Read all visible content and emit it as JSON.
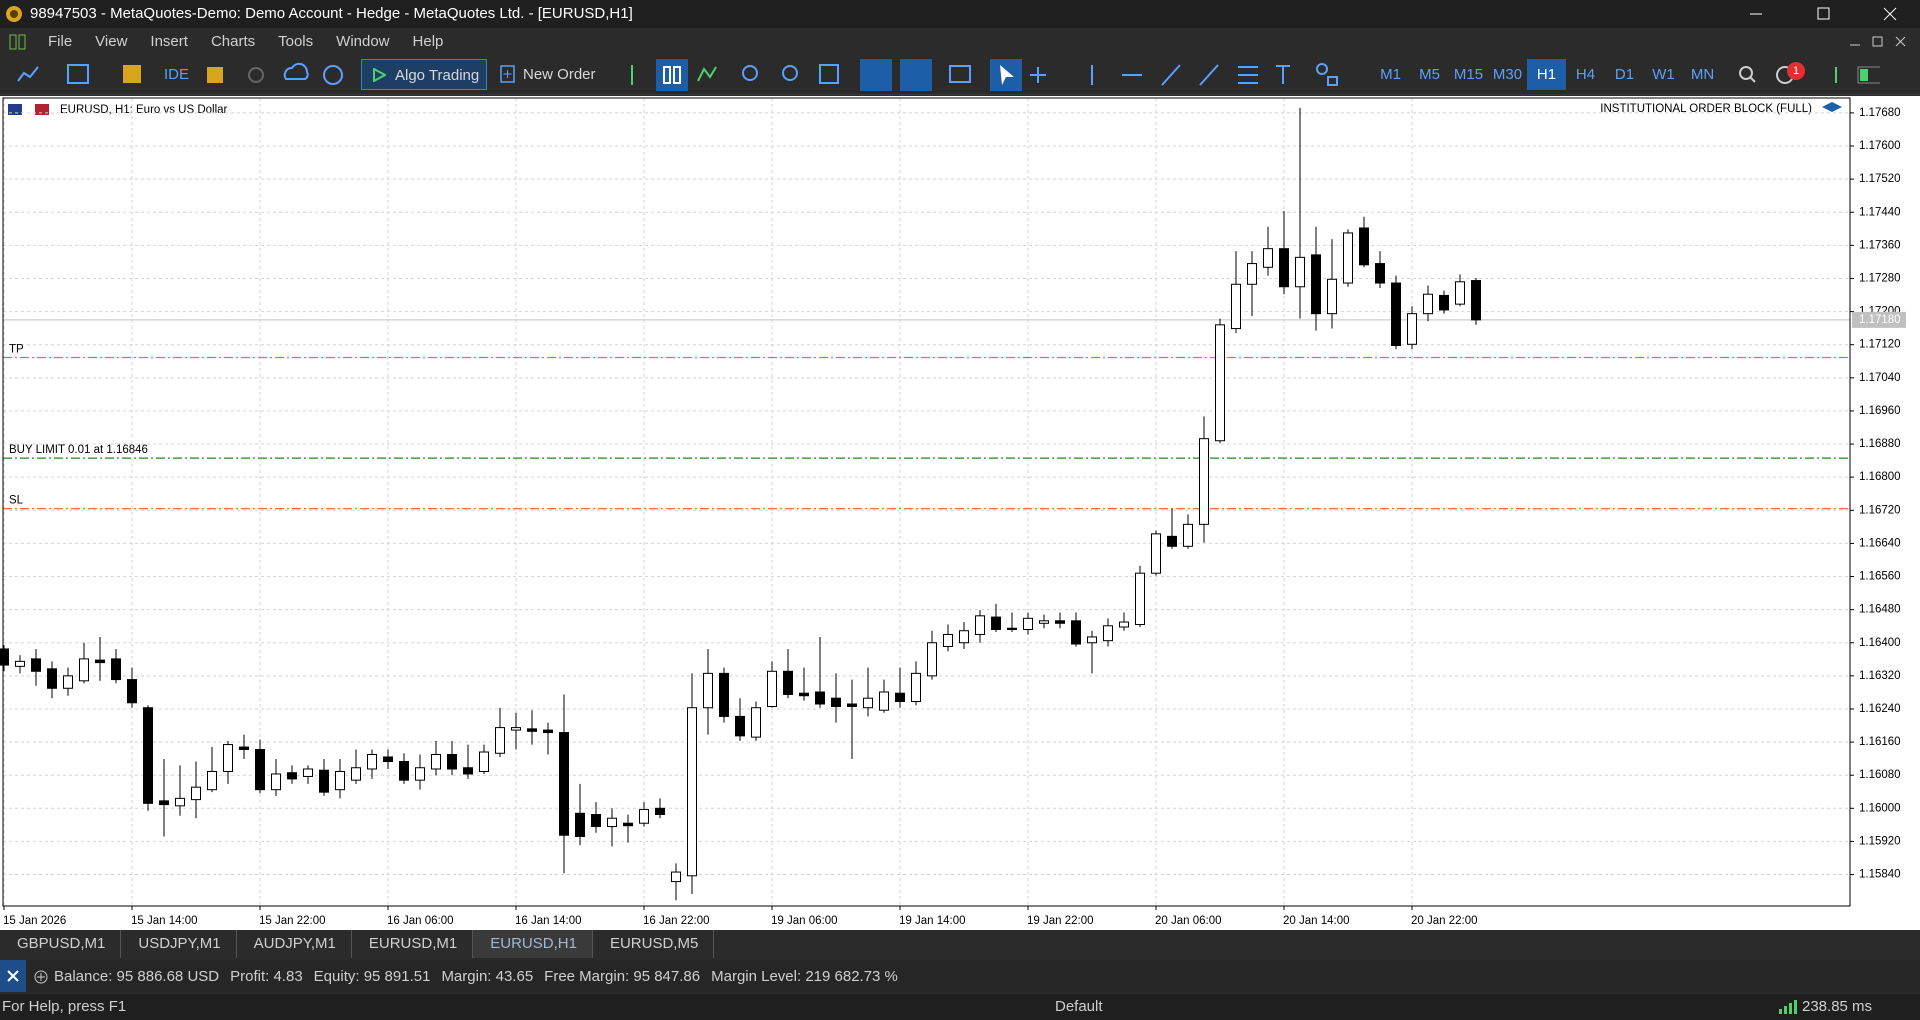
{
  "window": {
    "title": "98947503 - MetaQuotes-Demo: Demo Account - Hedge - MetaQuotes Ltd. - [EURUSD,H1]"
  },
  "menu": [
    "File",
    "View",
    "Insert",
    "Charts",
    "Tools",
    "Window",
    "Help"
  ],
  "toolbar": {
    "ide": "IDE",
    "algo_trading": "Algo Trading",
    "new_order": "New Order",
    "alerts": "1"
  },
  "timeframes": [
    {
      "label": "M1"
    },
    {
      "label": "M5"
    },
    {
      "label": "M15"
    },
    {
      "label": "M30"
    },
    {
      "label": "H1",
      "active": true
    },
    {
      "label": "H4"
    },
    {
      "label": "D1"
    },
    {
      "label": "W1"
    },
    {
      "label": "MN"
    }
  ],
  "chart_data": {
    "type": "candlestick",
    "symbol": "EURUSD, H1:",
    "description": "Euro vs US Dollar",
    "indicator": "INSTITUTIONAL ORDER BLOCK (FULL)",
    "categories": [
      "15 Jan 2026",
      null,
      null,
      null,
      null,
      null,
      null,
      null,
      "15 Jan 14:00",
      null,
      null,
      null,
      null,
      null,
      null,
      null,
      "15 Jan 22:00",
      null,
      null,
      null,
      null,
      null,
      null,
      null,
      "16 Jan 06:00",
      null,
      null,
      null,
      null,
      null,
      null,
      null,
      "16 Jan 14:00",
      null,
      null,
      null,
      null,
      null,
      null,
      null,
      "16 Jan 22:00",
      null,
      null,
      null,
      null,
      null,
      null,
      null,
      "19 Jan 06:00",
      null,
      null,
      null,
      null,
      null,
      null,
      null,
      "19 Jan 14:00",
      null,
      null,
      null,
      null,
      null,
      null,
      null,
      "19 Jan 22:00",
      null,
      null,
      null,
      null,
      null,
      null,
      null,
      "20 Jan 06:00",
      null,
      null,
      null,
      null,
      null,
      null,
      null,
      "20 Jan 14:00",
      null,
      null,
      null,
      null,
      null,
      null,
      null,
      "20 Jan 22:00",
      null,
      null,
      null,
      null
    ],
    "open": [
      1.16385,
      1.16343,
      1.16361,
      1.16337,
      1.1629,
      1.16308,
      1.16358,
      1.16361,
      1.16311,
      1.16243,
      1.16018,
      1.16006,
      1.16021,
      1.16045,
      1.16089,
      1.16148,
      1.16142,
      1.16045,
      1.16086,
      1.16077,
      1.16092,
      1.16045,
      1.16068,
      1.16095,
      1.16124,
      1.16113,
      1.16068,
      1.16095,
      1.1613,
      1.16098,
      1.16089,
      1.16133,
      1.16189,
      1.16192,
      1.16189,
      1.16183,
      1.15988,
      1.15985,
      1.15956,
      1.15964,
      1.15964,
      1.16,
      1.15823,
      1.15837,
      1.16243,
      1.16326,
      1.16222,
      1.16172,
      1.16246,
      1.16331,
      1.16278,
      1.16281,
      1.16266,
      1.16252,
      1.16243,
      1.16237,
      1.16278,
      1.16258,
      1.1632,
      1.16391,
      1.164,
      1.1642,
      1.16462,
      1.16435,
      1.16432,
      1.16447,
      1.16453,
      1.16453,
      1.164,
      1.16405,
      1.16438,
      1.16444,
      1.16568,
      1.16657,
      1.16633,
      1.16686,
      1.16888,
      1.17159,
      1.17266,
      1.17307,
      1.17352,
      1.1726,
      1.17337,
      1.17195,
      1.17269,
      1.17402,
      1.17316,
      1.17269,
      1.17121,
      1.17195,
      1.17239,
      1.17218,
      1.17275
    ],
    "high": [
      1.16394,
      1.1637,
      1.16385,
      1.16355,
      1.1634,
      1.164,
      1.16414,
      1.16385,
      1.1634,
      1.16249,
      1.16119,
      1.16104,
      1.16113,
      1.16148,
      1.16163,
      1.16178,
      1.16166,
      1.16119,
      1.16104,
      1.16104,
      1.16119,
      1.16119,
      1.16142,
      1.16142,
      1.16142,
      1.16133,
      1.1613,
      1.16163,
      1.16163,
      1.16154,
      1.16154,
      1.16243,
      1.16231,
      1.16237,
      1.16207,
      1.16275,
      1.16059,
      1.16015,
      1.16,
      1.15985,
      1.16015,
      1.16024,
      1.15867,
      1.16326,
      1.16385,
      1.1634,
      1.16266,
      1.16258,
      1.16355,
      1.16385,
      1.1634,
      1.16414,
      1.16326,
      1.16311,
      1.1634,
      1.16311,
      1.1634,
      1.16355,
      1.16429,
      1.16444,
      1.1645,
      1.16479,
      1.16494,
      1.16473,
      1.16473,
      1.16468,
      1.16473,
      1.16473,
      1.16429,
      1.16459,
      1.16473,
      1.16586,
      1.16671,
      1.16724,
      1.1671,
      1.16947,
      1.17183,
      1.17346,
      1.17346,
      1.17405,
      1.17443,
      1.17692,
      1.17405,
      1.17375,
      1.17399,
      1.17429,
      1.17346,
      1.17287,
      1.17213,
      1.17263,
      1.17251,
      1.1729,
      1.17281
    ],
    "low": [
      1.16331,
      1.16326,
      1.16296,
      1.16266,
      1.16272,
      1.16302,
      1.16308,
      1.16302,
      1.16243,
      1.15994,
      1.15932,
      1.15982,
      1.15976,
      1.16039,
      1.16059,
      1.16119,
      1.16036,
      1.1603,
      1.16059,
      1.16059,
      1.1603,
      1.16024,
      1.16059,
      1.16071,
      1.16095,
      1.16059,
      1.16045,
      1.1608,
      1.1608,
      1.16071,
      1.16083,
      1.16124,
      1.16142,
      1.16154,
      1.1613,
      1.15843,
      1.15911,
      1.15941,
      1.15908,
      1.15917,
      1.15956,
      1.15976,
      1.15778,
      1.15793,
      1.16178,
      1.16207,
      1.16163,
      1.16163,
      1.16243,
      1.16266,
      1.1626,
      1.16243,
      1.16207,
      1.16119,
      1.16222,
      1.16231,
      1.16243,
      1.16249,
      1.16311,
      1.16379,
      1.16385,
      1.164,
      1.16426,
      1.16426,
      1.1642,
      1.16435,
      1.16435,
      1.16391,
      1.16326,
      1.16391,
      1.16429,
      1.16438,
      1.16562,
      1.16627,
      1.16627,
      1.16642,
      1.16882,
      1.17148,
      1.17189,
      1.17287,
      1.17242,
      1.17183,
      1.17154,
      1.17159,
      1.1726,
      1.17307,
      1.17257,
      1.17109,
      1.17109,
      1.17177,
      1.17195,
      1.17213,
      1.17168
    ],
    "close": [
      1.16346,
      1.16355,
      1.16331,
      1.1629,
      1.1632,
      1.16361,
      1.16352,
      1.16311,
      1.16255,
      1.16012,
      1.16009,
      1.16024,
      1.16051,
      1.16089,
      1.16154,
      1.16142,
      1.16045,
      1.16083,
      1.16071,
      1.16095,
      1.16039,
      1.16089,
      1.16098,
      1.1613,
      1.16113,
      1.16068,
      1.16098,
      1.1613,
      1.16095,
      1.16083,
      1.16136,
      1.16195,
      1.16195,
      1.16186,
      1.16183,
      1.15935,
      1.15932,
      1.15956,
      1.15976,
      1.15958,
      1.15997,
      1.15985,
      1.15846,
      1.16243,
      1.16326,
      1.16222,
      1.16175,
      1.16243,
      1.16331,
      1.16275,
      1.16272,
      1.16252,
      1.16246,
      1.16246,
      1.16266,
      1.16281,
      1.16258,
      1.16326,
      1.164,
      1.1642,
      1.16429,
      1.16465,
      1.16432,
      1.16432,
      1.16459,
      1.16453,
      1.16447,
      1.16397,
      1.16414,
      1.16441,
      1.1645,
      1.16568,
      1.16663,
      1.16633,
      1.16686,
      1.16893,
      1.17168,
      1.17266,
      1.17316,
      1.17352,
      1.1726,
      1.17331,
      1.17195,
      1.17278,
      1.1739,
      1.17313,
      1.17269,
      1.17118,
      1.17195,
      1.17242,
      1.17204,
      1.17272,
      1.1718
    ],
    "up_color": "#ffffff",
    "down_color": "#000000",
    "wick_color": "#000000",
    "ylim": [
      1.15764,
      1.17716
    ],
    "yticks": [
      {
        "value": 1.1584,
        "label": "1.15840"
      },
      {
        "value": 1.1592,
        "label": "1.15920"
      },
      {
        "value": 1.16,
        "label": "1.16000"
      },
      {
        "value": 1.1608,
        "label": "1.16080"
      },
      {
        "value": 1.1616,
        "label": "1.16160"
      },
      {
        "value": 1.1624,
        "label": "1.16240"
      },
      {
        "value": 1.1632,
        "label": "1.16320"
      },
      {
        "value": 1.164,
        "label": "1.16400"
      },
      {
        "value": 1.1648,
        "label": "1.16480"
      },
      {
        "value": 1.1656,
        "label": "1.16560"
      },
      {
        "value": 1.1664,
        "label": "1.16640"
      },
      {
        "value": 1.1672,
        "label": "1.16720"
      },
      {
        "value": 1.168,
        "label": "1.16800"
      },
      {
        "value": 1.1688,
        "label": "1.16880"
      },
      {
        "value": 1.1696,
        "label": "1.16960"
      },
      {
        "value": 1.1704,
        "label": "1.17040"
      },
      {
        "value": 1.1712,
        "label": "1.17120"
      },
      {
        "value": 1.172,
        "label": "1.17200"
      },
      {
        "value": 1.1728,
        "label": "1.17280"
      },
      {
        "value": 1.1736,
        "label": "1.17360"
      },
      {
        "value": 1.1744,
        "label": "1.17440"
      },
      {
        "value": 1.1752,
        "label": "1.17520"
      },
      {
        "value": 1.176,
        "label": "1.17600"
      },
      {
        "value": 1.1768,
        "label": "1.17680"
      }
    ],
    "grid": true,
    "levels": [
      {
        "name": "TP",
        "value": 1.17089,
        "color": "#ff6a3d"
      },
      {
        "name": "BUY LIMIT 0.01 at 1.16846",
        "value": 1.16846,
        "color": "#1e8c1e"
      },
      {
        "name": "SL",
        "value": 1.16724,
        "color": "#ff6a3d"
      }
    ],
    "current_price": {
      "value": 1.1718,
      "label": "1.17180",
      "color": "#c0c0c0"
    }
  },
  "tabs": [
    {
      "label": "GBPUSD,M1"
    },
    {
      "label": "USDJPY,M1"
    },
    {
      "label": "AUDJPY,M1"
    },
    {
      "label": "EURUSD,M1"
    },
    {
      "label": "EURUSD,H1",
      "active": true
    },
    {
      "label": "EURUSD,M5"
    }
  ],
  "account": [
    "Balance: 95 886.68 USD",
    "Profit: 4.83",
    "Equity: 95 891.51",
    "Margin: 43.65",
    "Free Margin: 95 847.86",
    "Margin Level: 219 682.73 %"
  ],
  "status": {
    "help": "For Help, press F1",
    "profile": "Default",
    "ping": "238.85 ms"
  }
}
